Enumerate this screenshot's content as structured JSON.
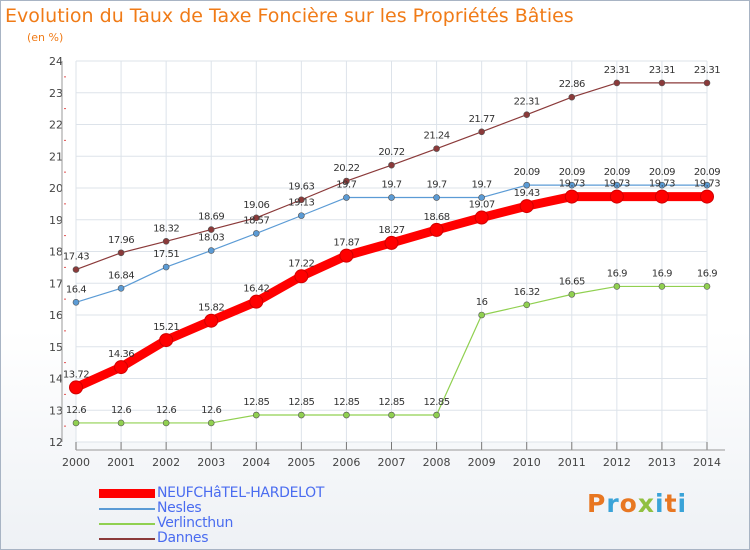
{
  "title": "Evolution du Taux de Taxe Foncière sur les Propriétés Bâties",
  "subtitle": "(en %)",
  "logo": {
    "text": "Proxiti",
    "colors": [
      "#e87722",
      "#3aa3d8",
      "#e87722",
      "#90c040",
      "#3aa3d8",
      "#e87722",
      "#3aa3d8"
    ]
  },
  "chart_data": {
    "type": "line",
    "title": "Evolution du Taux de Taxe Foncière sur les Propriétés Bâties",
    "ylabel": "(en %)",
    "xlabel": "",
    "ylim": [
      12,
      24
    ],
    "yticks": [
      "12",
      "13",
      "14",
      "15",
      "16",
      "17",
      "18",
      "19",
      "20",
      "21",
      "22",
      "23",
      "24"
    ],
    "categories": [
      "2000",
      "2001",
      "2002",
      "2003",
      "2004",
      "2005",
      "2006",
      "2007",
      "2008",
      "2009",
      "2010",
      "2011",
      "2012",
      "2013",
      "2014"
    ],
    "grid": true,
    "legend_position": "bottom-left",
    "series": [
      {
        "name": "NEUFCHâTEL-HARDELOT",
        "color": "#ff0000",
        "values": [
          13.72,
          14.36,
          15.21,
          15.82,
          16.42,
          17.22,
          17.87,
          18.27,
          18.68,
          19.07,
          19.43,
          19.73,
          19.73,
          19.73,
          19.73
        ],
        "labels": [
          "13.72",
          "14.36",
          "15.21",
          "15.82",
          "16.42",
          "17.22",
          "17.87",
          "18.27",
          "18.68",
          "19.07",
          "19.43",
          "19.73",
          "19.73",
          "19.73",
          "19.73"
        ]
      },
      {
        "name": "Nesles",
        "color": "#5b9bd5",
        "values": [
          16.4,
          16.84,
          17.51,
          18.03,
          18.57,
          19.13,
          19.7,
          19.7,
          19.7,
          19.7,
          20.09,
          20.09,
          20.09,
          20.09,
          20.09
        ],
        "labels": [
          "16.4",
          "16.84",
          "17.51",
          "18.03",
          "18.57",
          "19.13",
          "19.7",
          "19.7",
          "19.7",
          "19.7",
          "20.09",
          "20.09",
          "20.09",
          "20.09",
          "20.09"
        ]
      },
      {
        "name": "Verlincthun",
        "color": "#90d050",
        "values": [
          12.6,
          12.6,
          12.6,
          12.6,
          12.85,
          12.85,
          12.85,
          12.85,
          12.85,
          16,
          16.32,
          16.65,
          16.9,
          16.9,
          16.9
        ],
        "labels": [
          "12.6",
          "12.6",
          "12.6",
          "12.6",
          "12.85",
          "12.85",
          "12.85",
          "12.85",
          "12.85",
          "16",
          "16.32",
          "16.65",
          "16.9",
          "16.9",
          "16.9"
        ]
      },
      {
        "name": "Dannes",
        "color": "#8b3a3a",
        "values": [
          17.43,
          17.96,
          18.32,
          18.69,
          19.06,
          19.63,
          20.22,
          20.72,
          21.24,
          21.77,
          22.31,
          22.86,
          23.31,
          23.31,
          23.31
        ],
        "labels": [
          "17.43",
          "17.96",
          "18.32",
          "18.69",
          "19.06",
          "19.63",
          "20.22",
          "20.72",
          "21.24",
          "21.77",
          "22.31",
          "22.86",
          "23.31",
          "23.31",
          "23.31"
        ]
      }
    ]
  }
}
